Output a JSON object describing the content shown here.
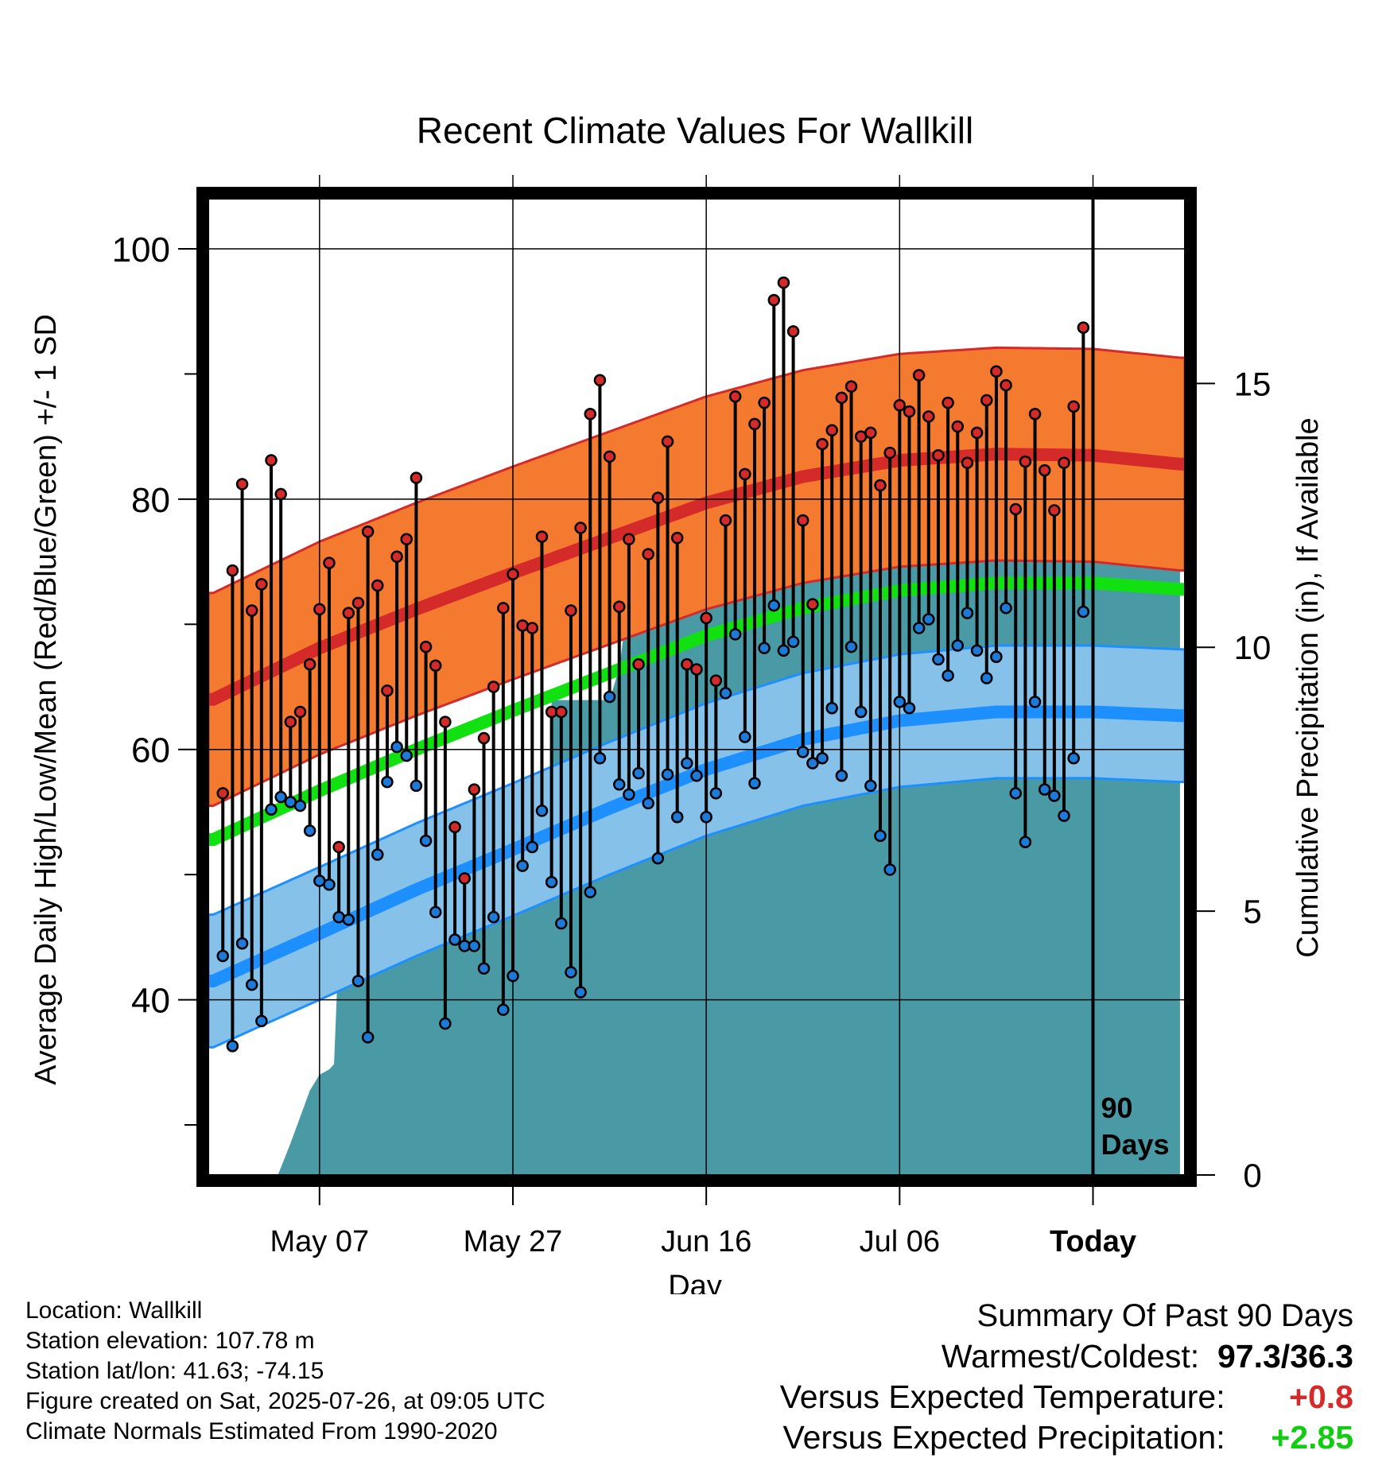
{
  "chart_data": {
    "type": "line",
    "title": "Recent Climate Values For Wallkill",
    "xlabel": "Day",
    "ylabel": "Average Daily High/Low/Mean (Red/Blue/Green) +/- 1 SD",
    "y2label": "Cumulative Precipitation (in), If Available",
    "ylim": [
      26,
      104
    ],
    "y2lim": [
      0,
      18.5
    ],
    "yticks": [
      100,
      80,
      60,
      40
    ],
    "y2ticks": [
      15,
      10,
      5,
      0
    ],
    "xticks": [
      {
        "day": 0,
        "label": "May 07"
      },
      {
        "day": 20,
        "label": "May 27"
      },
      {
        "day": 40,
        "label": "Jun 16"
      },
      {
        "day": 60,
        "label": "Jul 06"
      },
      {
        "day": 80,
        "label": "Today"
      }
    ],
    "xlim": [
      -11.5,
      89.5
    ],
    "days_window_label": "90 Days",
    "colors": {
      "high_band": "#f47a30",
      "high_line": "#d42a2a",
      "low_band": "#85c1e8",
      "low_line": "#1e8fff",
      "mean_line": "#11e011",
      "precip": "#4a9aa5",
      "high_marker": "#d42a2a",
      "low_marker": "#1e7ad8"
    },
    "normals": {
      "x": [
        -11,
        0,
        10,
        20,
        30,
        40,
        50,
        60,
        70,
        80,
        89
      ],
      "high": [
        64.0,
        68.1,
        71.2,
        74.1,
        76.9,
        79.7,
        81.8,
        83.1,
        83.6,
        83.5,
        82.8
      ],
      "high_sd": 8.5,
      "low": [
        41.5,
        45.3,
        48.8,
        52.0,
        55.3,
        58.4,
        60.8,
        62.3,
        63.0,
        63.0,
        62.7
      ],
      "low_sd": 5.3,
      "mean": [
        52.8,
        56.7,
        60.0,
        63.1,
        66.1,
        69.1,
        71.3,
        72.7,
        73.3,
        73.3,
        72.8
      ]
    },
    "observations": {
      "day_start": -10,
      "high": [
        56.5,
        74.3,
        81.2,
        71.1,
        73.2,
        83.1,
        80.4,
        62.2,
        63.0,
        66.8,
        71.2,
        74.9,
        52.2,
        70.9,
        71.7,
        77.4,
        73.1,
        64.7,
        75.4,
        76.8,
        81.7,
        68.2,
        66.7,
        62.2,
        53.8,
        49.7,
        56.8,
        60.9,
        65.0,
        71.3,
        74.0,
        69.9,
        69.7,
        77.0,
        63.0,
        63.0,
        71.1,
        77.7,
        86.8,
        89.5,
        83.4,
        71.4,
        76.8,
        66.8,
        75.6,
        80.1,
        84.6,
        76.9,
        66.8,
        66.4,
        70.5,
        65.5,
        78.3,
        88.2,
        82.0,
        86.0,
        87.7,
        95.9,
        97.3,
        93.4,
        78.3,
        71.6,
        84.4,
        85.5,
        88.1,
        89.0,
        85.0,
        85.3,
        81.1,
        83.7,
        87.5,
        87.0,
        89.9,
        86.6,
        83.5,
        87.7,
        85.8,
        82.9,
        85.3,
        87.9,
        90.2,
        89.1,
        79.2,
        83.0,
        86.8,
        82.3,
        79.1,
        82.9,
        87.4,
        93.7
      ],
      "low": [
        43.5,
        36.3,
        44.5,
        41.2,
        38.3,
        55.2,
        56.2,
        55.8,
        55.5,
        53.5,
        49.5,
        49.2,
        46.6,
        46.4,
        41.5,
        37.0,
        51.6,
        57.4,
        60.2,
        59.5,
        57.1,
        52.7,
        47.0,
        38.1,
        44.8,
        44.3,
        44.3,
        42.5,
        46.6,
        39.2,
        41.9,
        50.7,
        52.2,
        55.1,
        49.4,
        46.1,
        42.2,
        40.6,
        48.6,
        59.3,
        64.2,
        57.2,
        56.4,
        58.1,
        55.7,
        51.3,
        58.0,
        54.6,
        58.9,
        57.9,
        54.6,
        56.5,
        64.5,
        69.2,
        61.0,
        57.3,
        68.1,
        71.5,
        67.9,
        68.6,
        59.8,
        58.9,
        59.3,
        63.3,
        57.9,
        68.2,
        63.0,
        57.1,
        53.1,
        50.4,
        63.8,
        63.3,
        69.7,
        70.4,
        67.2,
        65.9,
        68.3,
        70.9,
        67.9,
        65.7,
        67.4,
        71.3,
        56.5,
        52.6,
        63.8,
        56.8,
        56.3,
        54.7,
        59.3,
        71.0
      ]
    },
    "cumulative_precip": {
      "day": [
        -4.3,
        -3,
        -2,
        -1,
        0,
        1,
        1.5,
        2,
        3,
        4,
        5,
        6,
        7,
        8,
        9,
        10,
        13,
        14,
        15,
        16,
        17,
        18,
        20,
        21,
        22,
        23,
        23.8,
        24,
        25,
        26,
        27,
        28,
        29,
        30,
        31,
        31.5,
        32,
        33,
        34,
        35,
        36,
        37,
        38,
        39,
        40,
        41,
        42,
        43,
        44,
        45,
        46,
        47,
        48,
        49,
        50,
        51,
        52,
        53,
        54,
        55,
        56,
        57,
        58,
        60,
        65,
        70,
        80,
        89
      ],
      "value": [
        0,
        0.6,
        1.1,
        1.6,
        1.9,
        2.0,
        2.1,
        4.4,
        4.4,
        4.5,
        4.7,
        5.0,
        5.0,
        5.0,
        5.0,
        5.0,
        5.5,
        5.7,
        5.8,
        5.8,
        5.8,
        5.8,
        5.8,
        5.8,
        5.9,
        5.9,
        6.0,
        9.0,
        9.0,
        9.0,
        9.0,
        9.0,
        9.0,
        9.0,
        9.6,
        10.3,
        10.3,
        10.4,
        10.8,
        11.3,
        11.3,
        11.3,
        11.3,
        11.4,
        11.4,
        12.0,
        12.3,
        12.9,
        12.9,
        12.9,
        12.9,
        12.9,
        13.0,
        13.0,
        13.0,
        13.0,
        13.0,
        13.4,
        13.6,
        13.6,
        13.6,
        14.0,
        14.0,
        14.0,
        14.1,
        14.1,
        14.1,
        14.1
      ],
      "note": ""
    }
  },
  "info": {
    "location": "Location: Wallkill",
    "elevation": "Station elevation: 107.78 m",
    "latlon": "Station lat/lon: 41.63; -74.15",
    "created": "Figure created on Sat, 2025-07-26, at 09:05 UTC",
    "normals": "Climate Normals Estimated From 1990-2020"
  },
  "summary": {
    "title": "Summary Of Past 90 Days",
    "warmest_label": "Warmest/Coldest:",
    "warmest_value": "97.3/36.3",
    "temp_label": "Versus Expected Temperature:",
    "temp_value": "+0.8",
    "temp_color": "#d42a2a",
    "precip_label": "Versus Expected Precipitation:",
    "precip_value": "+2.85",
    "precip_color": "#11cc11"
  }
}
